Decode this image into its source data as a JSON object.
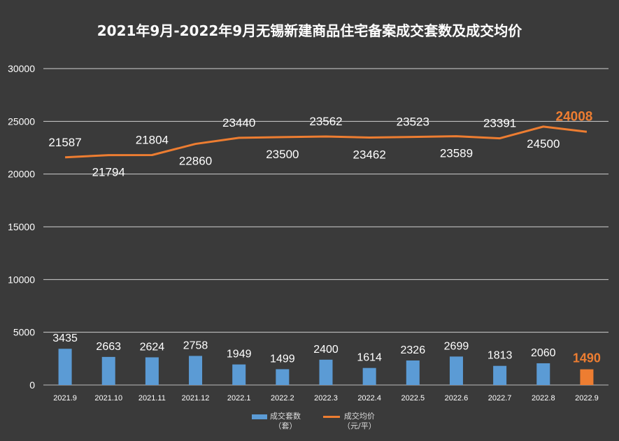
{
  "chart_data": {
    "type": "bar+line",
    "title": "2021年9月-2022年9月无锡新建商品住宅备案成交套数及成交均价",
    "categories": [
      "2021.9",
      "2021.10",
      "2021.11",
      "2021.12",
      "2022.1",
      "2022.2",
      "2022.3",
      "2022.4",
      "2022.5",
      "2022.6",
      "2022.7",
      "2022.8",
      "2022.9"
    ],
    "series": [
      {
        "name": "成交套数",
        "unit": "（套）",
        "type": "bar",
        "values": [
          3435,
          2663,
          2624,
          2758,
          1949,
          1499,
          2400,
          1614,
          2326,
          2699,
          1813,
          2060,
          1490
        ]
      },
      {
        "name": "成交均价",
        "unit": "（元/平）",
        "type": "line",
        "values": [
          21587,
          21794,
          21804,
          22860,
          23440,
          23500,
          23562,
          23462,
          23523,
          23589,
          23391,
          24500,
          24008
        ]
      }
    ],
    "ylim": [
      0,
      30000
    ],
    "yticks": [
      0,
      5000,
      10000,
      15000,
      20000,
      25000,
      30000
    ],
    "grid": true,
    "legend_position": "bottom",
    "colors": {
      "bar": "#5b9bd5",
      "line": "#ed7d31",
      "highlight": "#ed7d31"
    }
  }
}
